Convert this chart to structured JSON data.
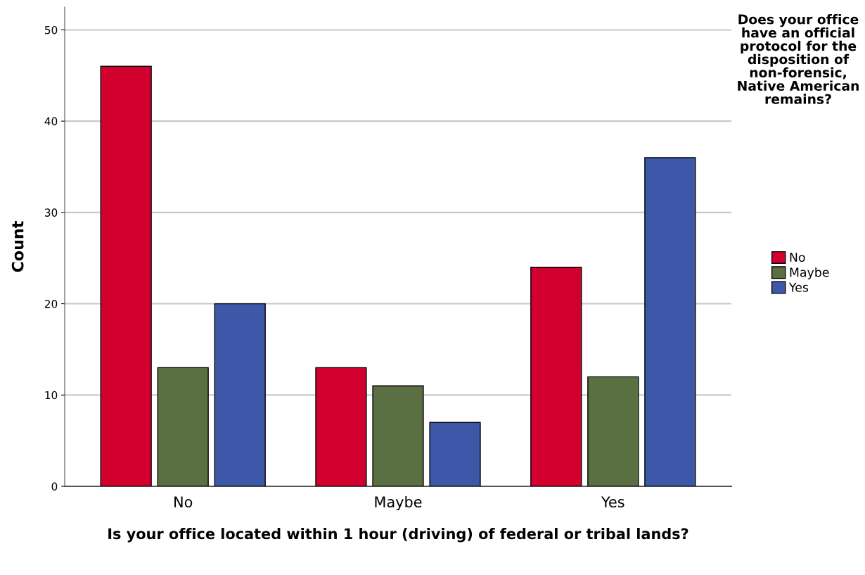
{
  "chart_data": {
    "type": "bar",
    "xlabel": "Is your office located within 1 hour (driving) of federal or tribal lands?",
    "ylabel": "Count",
    "legend_title": "Does your office have an official protocol for the disposition of non-forensic, Native American remains?",
    "categories": [
      "No",
      "Maybe",
      "Yes"
    ],
    "series": [
      {
        "name": "No",
        "color": "#d2002e",
        "values": [
          46,
          13,
          24
        ]
      },
      {
        "name": "Maybe",
        "color": "#5b7042",
        "values": [
          13,
          11,
          12
        ]
      },
      {
        "name": "Yes",
        "color": "#3d58a8",
        "values": [
          20,
          7,
          36
        ]
      }
    ],
    "ylim": [
      0,
      52.5
    ],
    "yticks": [
      0,
      10,
      20,
      30,
      40,
      50
    ],
    "grid": "y",
    "legend": "right"
  }
}
